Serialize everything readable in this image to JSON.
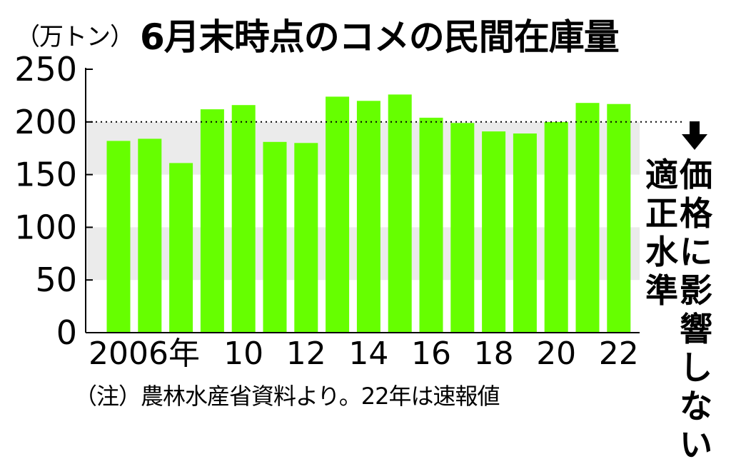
{
  "unit_label": "（万トン）",
  "note": "（注）農林水産省資料より。22年は速報値",
  "annotations": {
    "level_label": "適正水準",
    "effect_label": "価格に影響しない"
  },
  "colors": {
    "bar": "#66ff00",
    "band": "#ebebeb",
    "axis": "#000000"
  },
  "chart_data": {
    "type": "bar",
    "title": "6月末時点のコメの民間在庫量",
    "xlabel": "",
    "ylabel": "",
    "ylim": [
      0,
      250
    ],
    "yticks": [
      0,
      50,
      100,
      150,
      200,
      250
    ],
    "reference_line": 200,
    "categories": [
      "2006",
      "2007",
      "2008",
      "2009",
      "2010",
      "2011",
      "2012",
      "2013",
      "2014",
      "2015",
      "2016",
      "2017",
      "2018",
      "2019",
      "2020",
      "2021",
      "2022"
    ],
    "tick_labels": [
      "2006年",
      "",
      "",
      "",
      "10",
      "",
      "12",
      "",
      "14",
      "",
      "16",
      "",
      "18",
      "",
      "20",
      "",
      "22"
    ],
    "values": [
      182,
      184,
      161,
      212,
      216,
      181,
      180,
      224,
      220,
      226,
      204,
      199,
      191,
      189,
      200,
      218,
      217
    ],
    "grid": false
  }
}
